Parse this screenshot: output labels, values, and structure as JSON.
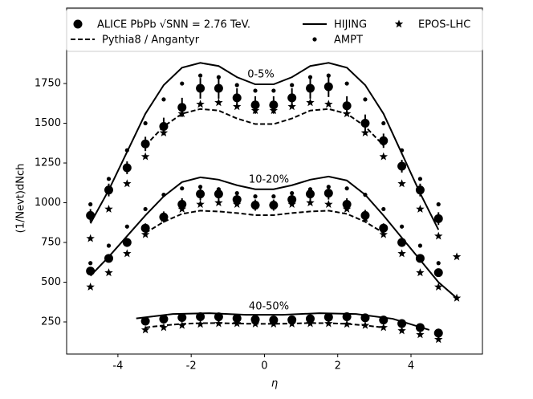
{
  "chart_data": {
    "type": "line",
    "xlabel": "η",
    "ylabel": "(1/Nevt)dNch",
    "xlim": [
      -5.4,
      5.95
    ],
    "ylim": [
      48,
      2225
    ],
    "xticks": [
      -4,
      -2,
      0,
      2,
      4
    ],
    "yticks": [
      250,
      500,
      750,
      1000,
      1250,
      1500,
      1750
    ],
    "annotations": [
      "0-5%",
      "10-20%",
      "40-50%"
    ],
    "series": [
      {
        "name": "ALICE PbPb √SNN = 2.76 TeV.",
        "marker": "circle",
        "color": "#000000",
        "data": [
          {
            "x": [
              -4.75,
              -4.25,
              -3.75,
              -3.25,
              -2.75,
              -2.25,
              -1.75,
              -1.25,
              -0.75,
              -0.25,
              0.25,
              0.75,
              1.25,
              1.75,
              2.25,
              2.75,
              3.25,
              3.75,
              4.25,
              4.75
            ],
            "values": [
              920,
              1080,
              1220,
              1370,
              1480,
              1600,
              1720,
              1720,
              1660,
              1615,
              1615,
              1660,
              1720,
              1730,
              1610,
              1500,
              1390,
              1230,
              1080,
              900
            ],
            "errors": [
              40,
              40,
              40,
              45,
              55,
              60,
              65,
              65,
              60,
              55,
              55,
              60,
              65,
              65,
              60,
              55,
              45,
              40,
              40,
              40
            ]
          },
          {
            "x": [
              -4.75,
              -4.25,
              -3.75,
              -3.25,
              -2.75,
              -2.25,
              -1.75,
              -1.25,
              -0.75,
              -0.25,
              0.25,
              0.75,
              1.25,
              1.75,
              2.25,
              2.75,
              3.25,
              3.75,
              4.25,
              4.75
            ],
            "values": [
              570,
              650,
              750,
              840,
              910,
              990,
              1055,
              1055,
              1020,
              985,
              985,
              1020,
              1055,
              1060,
              990,
              920,
              840,
              750,
              650,
              560
            ],
            "errors": [
              25,
              25,
              28,
              30,
              35,
              38,
              40,
              40,
              38,
              35,
              35,
              38,
              40,
              40,
              38,
              35,
              30,
              28,
              25,
              25
            ]
          },
          {
            "x": [
              -3.25,
              -2.75,
              -2.25,
              -1.75,
              -1.25,
              -0.75,
              -0.25,
              0.25,
              0.75,
              1.25,
              1.75,
              2.25,
              2.75,
              3.25,
              3.75,
              4.25,
              4.75
            ],
            "values": [
              255,
              268,
              278,
              283,
              282,
              273,
              265,
              262,
              263,
              270,
              280,
              283,
              276,
              262,
              240,
              215,
              180
            ],
            "errors": [
              10,
              10,
              12,
              12,
              12,
              12,
              12,
              12,
              12,
              12,
              12,
              12,
              12,
              10,
              10,
              10,
              8
            ]
          }
        ]
      },
      {
        "name": "Pythia8 / Angantyr",
        "marker": "dashed",
        "color": "#000000",
        "data": [
          {
            "x": [
              -3.25,
              -2.75,
              -2.25,
              -1.75,
              -1.25,
              -0.75,
              -0.25,
              0.25,
              0.75,
              1.25,
              1.75,
              2.25,
              2.75,
              3.25
            ],
            "values": [
              1360,
              1480,
              1560,
              1590,
              1580,
              1530,
              1495,
              1495,
              1530,
              1580,
              1590,
              1560,
              1480,
              1360
            ]
          },
          {
            "x": [
              -3.25,
              -2.75,
              -2.25,
              -1.75,
              -1.25,
              -0.75,
              -0.25,
              0.25,
              0.75,
              1.25,
              1.75,
              2.25,
              2.75,
              3.25
            ],
            "values": [
              810,
              880,
              930,
              950,
              945,
              935,
              922,
              922,
              935,
              945,
              950,
              930,
              880,
              810
            ]
          },
          {
            "x": [
              -3.25,
              -2.75,
              -2.25,
              -1.75,
              -1.25,
              -0.75,
              -0.25,
              0.25,
              0.75,
              1.25,
              1.75,
              2.25,
              2.75,
              3.25
            ],
            "values": [
              215,
              228,
              238,
              242,
              243,
              240,
              238,
              238,
              240,
              243,
              242,
              238,
              228,
              215
            ]
          }
        ]
      },
      {
        "name": "HIJING",
        "marker": "solid",
        "color": "#000000",
        "data": [
          {
            "x": [
              -4.75,
              -4.25,
              -3.75,
              -3.25,
              -2.75,
              -2.25,
              -1.75,
              -1.25,
              -0.75,
              -0.25,
              0.25,
              0.75,
              1.25,
              1.75,
              2.25,
              2.75,
              3.25,
              3.75,
              4.25,
              4.75
            ],
            "values": [
              870,
              1080,
              1320,
              1560,
              1740,
              1850,
              1880,
              1860,
              1790,
              1745,
              1745,
              1790,
              1860,
              1880,
              1850,
              1740,
              1560,
              1310,
              1060,
              830
            ]
          },
          {
            "x": [
              -4.75,
              -4.25,
              -3.75,
              -3.25,
              -2.75,
              -2.25,
              -1.75,
              -1.25,
              -0.75,
              -0.25,
              0.25,
              0.75,
              1.25,
              1.75,
              2.25,
              2.75,
              3.25,
              3.75,
              4.25,
              4.75,
              5.25
            ],
            "values": [
              540,
              660,
              790,
              920,
              1040,
              1130,
              1160,
              1145,
              1110,
              1085,
              1085,
              1110,
              1145,
              1165,
              1140,
              1050,
              920,
              780,
              640,
              500,
              400
            ]
          },
          {
            "x": [
              -3.5,
              -2.5,
              -1.5,
              -0.5,
              0.5,
              1.5,
              2.5,
              3.5,
              4.5
            ],
            "values": [
              272,
              300,
              305,
              295,
              295,
              305,
              300,
              270,
              200
            ]
          }
        ]
      },
      {
        "name": "AMPT",
        "marker": "dot",
        "color": "#000000",
        "data": [
          {
            "x": [
              -4.75,
              -4.25,
              -3.75,
              -3.25,
              -2.75,
              -2.25,
              -1.75,
              -1.25,
              -0.75,
              -0.25,
              0.25,
              0.75,
              1.25,
              1.75,
              2.25,
              2.75,
              3.25,
              3.75,
              4.25,
              4.75
            ],
            "values": [
              990,
              1150,
              1330,
              1500,
              1650,
              1750,
              1800,
              1790,
              1740,
              1705,
              1705,
              1740,
              1790,
              1800,
              1750,
              1650,
              1500,
              1330,
              1150,
              990
            ]
          },
          {
            "x": [
              -4.75,
              -4.25,
              -3.75,
              -3.25,
              -2.75,
              -2.25,
              -1.75,
              -1.25,
              -0.75,
              -0.25,
              0.25,
              0.75,
              1.25,
              1.75,
              2.25,
              2.75,
              3.25,
              3.75,
              4.25,
              4.75
            ],
            "values": [
              620,
              730,
              850,
              960,
              1050,
              1090,
              1100,
              1085,
              1060,
              1040,
              1040,
              1060,
              1085,
              1100,
              1090,
              1050,
              960,
              850,
              730,
              620
            ]
          },
          {
            "x": [
              -3.25,
              -2.75,
              -2.25,
              -1.75,
              -1.25,
              -0.75,
              -0.25,
              0.25,
              0.75,
              1.25,
              1.75,
              2.25,
              2.75,
              3.25,
              3.75,
              4.25,
              4.75
            ],
            "values": [
              250,
              262,
              270,
              274,
              272,
              266,
              262,
              260,
              262,
              266,
              272,
              274,
              270,
              262,
              248,
              225,
              195
            ]
          }
        ]
      },
      {
        "name": "EPOS-LHC",
        "marker": "star",
        "color": "#000000",
        "data": [
          {
            "x": [
              -4.75,
              -4.25,
              -3.75,
              -3.25,
              -2.75,
              -2.25,
              -1.75,
              -1.25,
              -0.75,
              -0.25,
              0.25,
              0.75,
              1.25,
              1.75,
              2.25,
              2.75,
              3.25,
              3.75,
              4.25,
              4.75,
              5.25
            ],
            "values": [
              775,
              960,
              1120,
              1290,
              1440,
              1560,
              1620,
              1630,
              1605,
              1580,
              1580,
              1605,
              1630,
              1620,
              1560,
              1440,
              1290,
              1120,
              960,
              790,
              660
            ]
          },
          {
            "x": [
              -4.75,
              -4.25,
              -3.75,
              -3.25,
              -2.75,
              -2.25,
              -1.75,
              -1.25,
              -0.75,
              -0.25,
              0.25,
              0.75,
              1.25,
              1.75,
              2.25,
              2.75,
              3.25,
              3.75,
              4.25,
              4.75,
              5.25
            ],
            "values": [
              470,
              560,
              680,
              800,
              900,
              960,
              990,
              1000,
              990,
              980,
              980,
              990,
              1000,
              990,
              960,
              900,
              800,
              680,
              560,
              470,
              400
            ]
          },
          {
            "x": [
              -3.25,
              -2.75,
              -2.25,
              -1.75,
              -1.25,
              -0.75,
              -0.25,
              0.25,
              0.75,
              1.25,
              1.75,
              2.25,
              2.75,
              3.25,
              3.75,
              4.25,
              4.75
            ],
            "values": [
              200,
              215,
              228,
              236,
              240,
              240,
              238,
              237,
              238,
              240,
              240,
              236,
              228,
              215,
              195,
              170,
              140
            ]
          }
        ]
      }
    ]
  }
}
